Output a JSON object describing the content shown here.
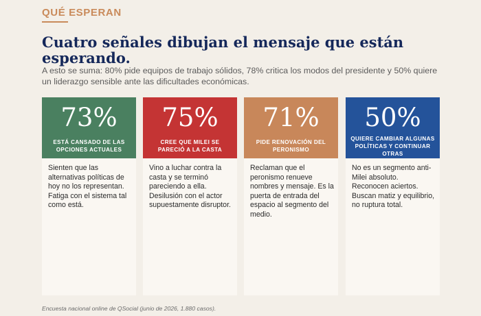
{
  "kicker": "QUÉ ESPERAN",
  "title": "Cuatro señales dibujan el mensaje que están esperando.",
  "subtitle": "A esto se suma: 80% pide equipos de trabajo sólidos, 78% critica los modos del presidente y 50% quiere un liderazgo sensible ante las dificultades económicas.",
  "colors": {
    "card1": "#4a8060",
    "card2": "#c43434",
    "card3": "#c8875a",
    "card4": "#24539a",
    "kicker": "#c98a5a",
    "title": "#15285a"
  },
  "cards": [
    {
      "pct": "73%",
      "label": "ESTÁ CANSADO DE LAS OPCIONES ACTUALES",
      "body": "Sienten que las alternativas políticas de hoy no los representan. Fatiga con el sistema tal como está."
    },
    {
      "pct": "75%",
      "label": "CREE QUE MILEI SE PARECIÓ A LA CASTA",
      "body": "Vino a luchar contra la casta y se terminó pareciendo a ella. Desilusión con el actor supuestamente disruptor."
    },
    {
      "pct": "71%",
      "label": "PIDE RENOVACIÓN DEL PERONISMO",
      "body": "Reclaman que el peronismo renueve nombres y mensaje. Es la puerta de entrada del espacio al segmento del medio."
    },
    {
      "pct": "50%",
      "label": "QUIERE CAMBIAR ALGUNAS POLÍTICAS Y CONTINUAR OTRAS",
      "body": "No es un segmento anti-Milei absoluto. Reconocen aciertos. Buscan matiz y equilibrio, no ruptura total."
    }
  ],
  "footnote": "Encuesta nacional online de QSocial (junio de 2026, 1.880 casos)."
}
